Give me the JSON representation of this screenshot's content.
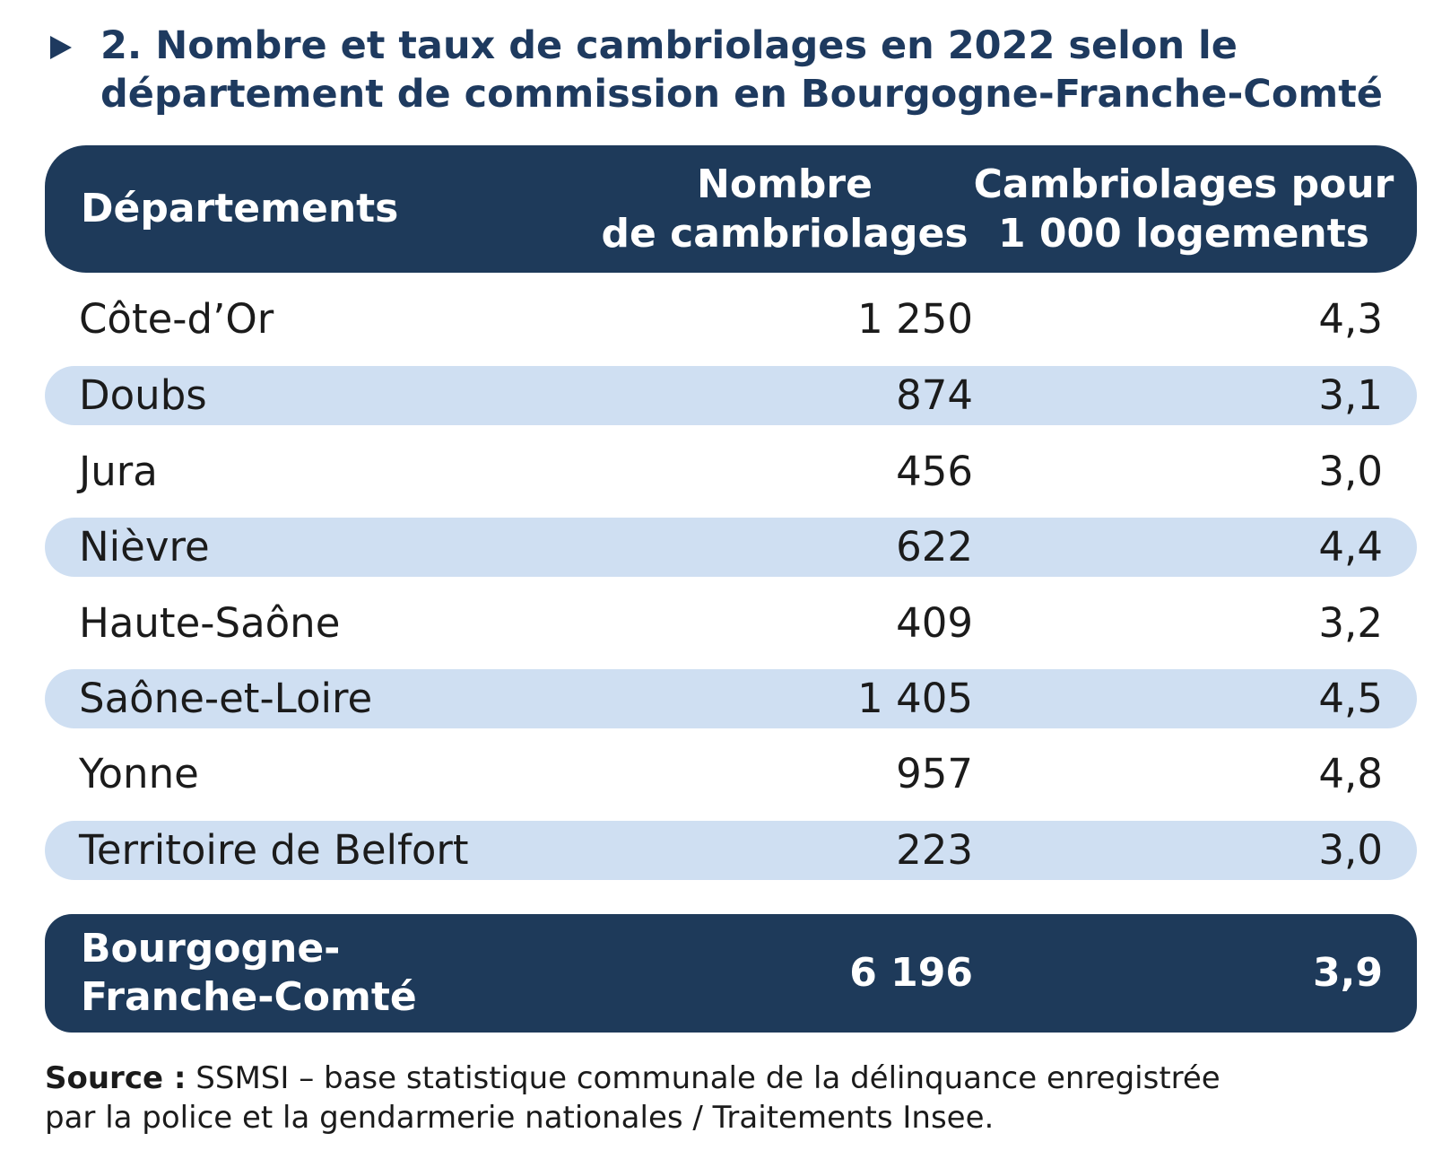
{
  "title": {
    "line1": "2. Nombre et taux de cambriolages en 2022 selon le",
    "line2": "département de commission en Bourgogne-Franche-Comté"
  },
  "table": {
    "headers": {
      "departement": "Départements",
      "nombre_line1": "Nombre",
      "nombre_line2": "de cambriolages",
      "taux_line1": "Cambriolages pour",
      "taux_line2": "1 000 logements"
    },
    "rows": [
      {
        "departement": "Côte-d’Or",
        "nombre": "1 250",
        "taux": "4,3"
      },
      {
        "departement": "Doubs",
        "nombre": "874",
        "taux": "3,1"
      },
      {
        "departement": "Jura",
        "nombre": "456",
        "taux": "3,0"
      },
      {
        "departement": "Nièvre",
        "nombre": "622",
        "taux": "4,4"
      },
      {
        "departement": "Haute-Saône",
        "nombre": "409",
        "taux": "3,2"
      },
      {
        "departement": "Saône-et-Loire",
        "nombre": "1 405",
        "taux": "4,5"
      },
      {
        "departement": "Yonne",
        "nombre": "957",
        "taux": "4,8"
      },
      {
        "departement": "Territoire de Belfort",
        "nombre": "223",
        "taux": "3,0"
      }
    ],
    "total": {
      "departement_line1": "Bourgogne-",
      "departement_line2": "Franche-Comté",
      "nombre": "6 196",
      "taux": "3,9"
    }
  },
  "source": {
    "label": "Source :",
    "line1": " SSMSI – base statistique communale de la délinquance enregistrée",
    "line2": "par la police et la gendarmerie nationales / Traitements Insee."
  },
  "colors": {
    "header_bg": "#1e3a5a",
    "title_color": "#1e3a5f",
    "shaded_row": "#cfdff2"
  }
}
